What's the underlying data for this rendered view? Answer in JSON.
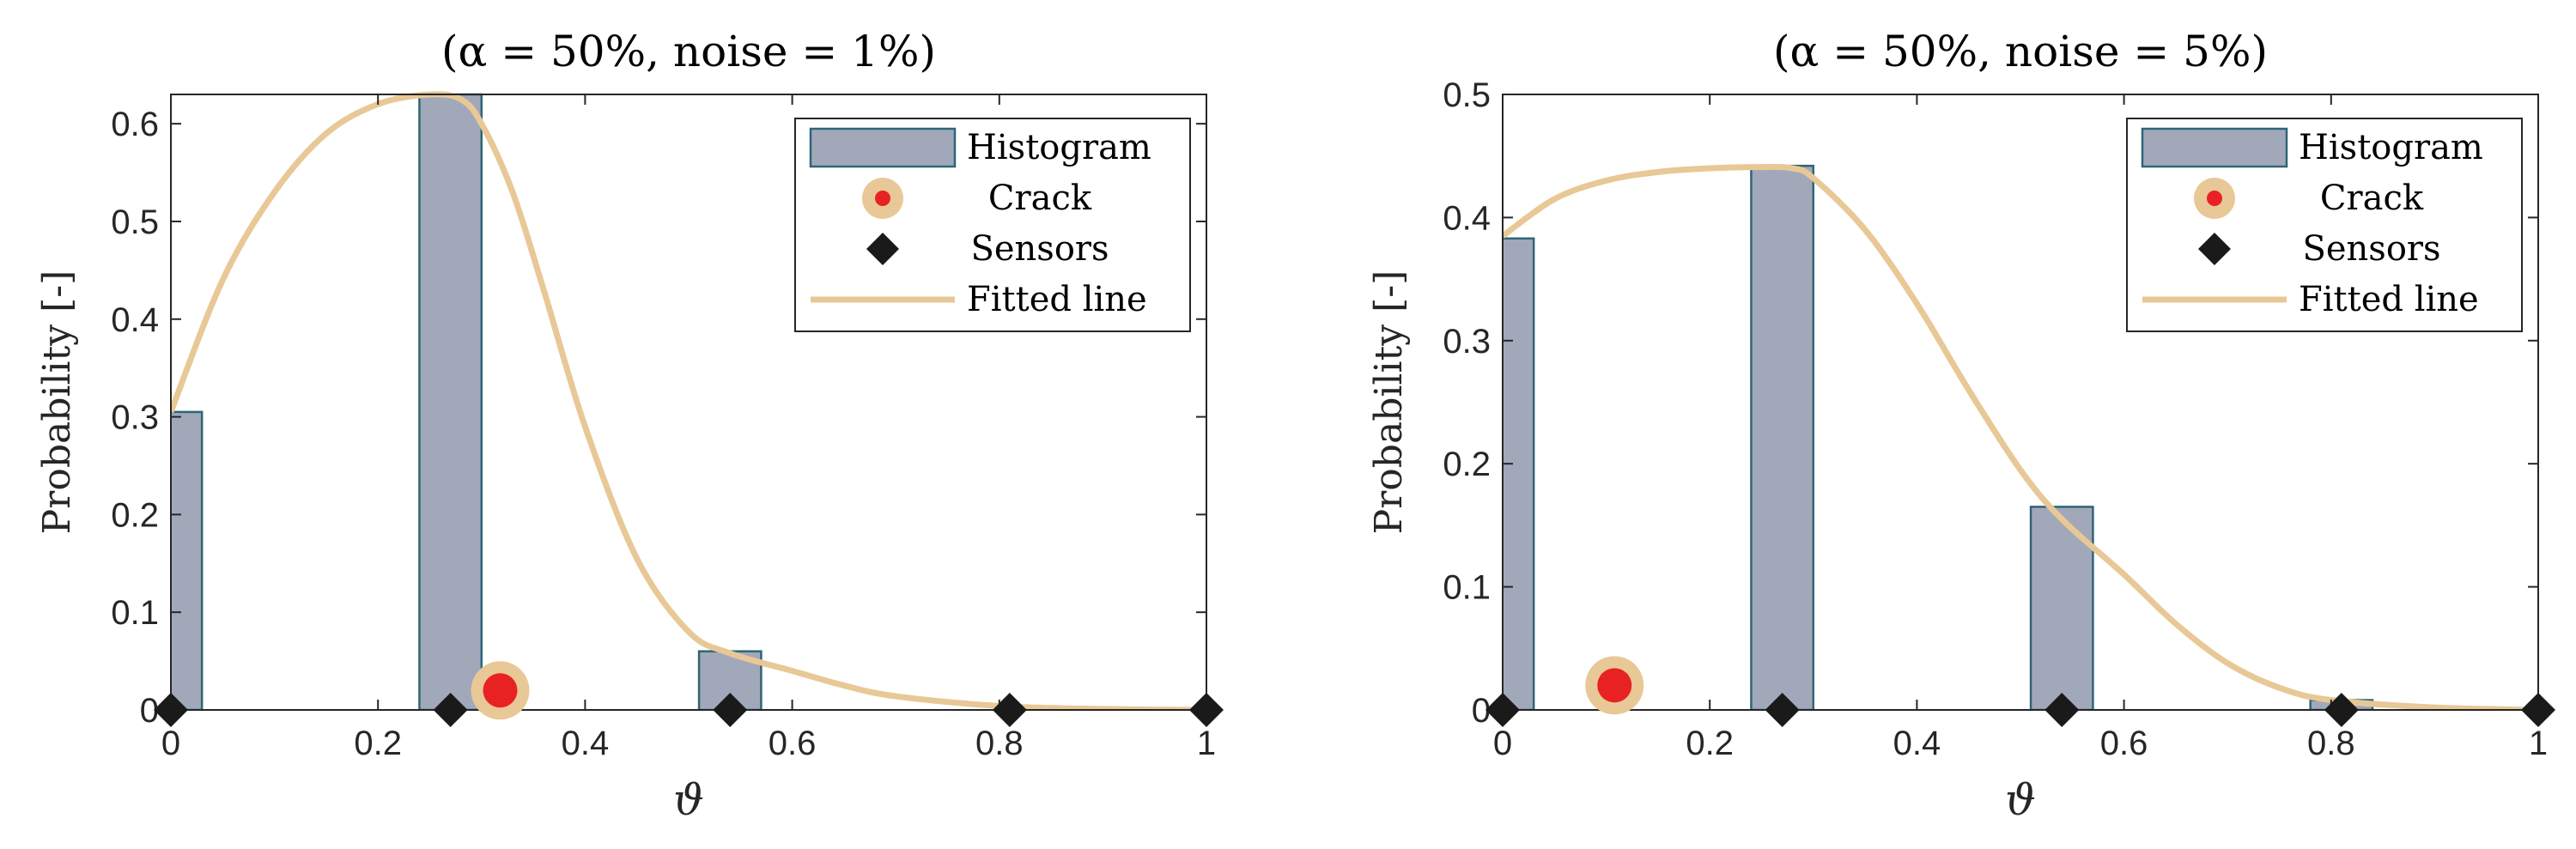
{
  "chart_data": [
    {
      "type": "bar",
      "title": "(α = 50%,  noise = 1%)",
      "xlabel": "ϑ",
      "ylabel": "Probability [-]",
      "xlim": [
        0,
        1
      ],
      "ylim": [
        0,
        0.63
      ],
      "xticks": [
        0,
        0.2,
        0.4,
        0.6,
        0.8,
        1
      ],
      "xtick_labels": [
        "0",
        "0.2",
        "0.4",
        "0.6",
        "0.8",
        "1"
      ],
      "yticks": [
        0,
        0.1,
        0.2,
        0.3,
        0.4,
        0.5,
        0.6
      ],
      "ytick_labels": [
        "0",
        "0.1",
        "0.2",
        "0.3",
        "0.4",
        "0.5",
        "0.6"
      ],
      "legend_position": "top-right",
      "legend": [
        "Histogram",
        "Crack",
        "Sensors",
        "Fitted line"
      ],
      "histogram": {
        "bar_width": 0.06,
        "bins": [
          {
            "center": 0.0,
            "value": 0.305
          },
          {
            "center": 0.27,
            "value": 0.63
          },
          {
            "center": 0.54,
            "value": 0.06
          }
        ]
      },
      "crack": {
        "x": 0.318,
        "y": 0.02
      },
      "sensors": [
        0.0,
        0.27,
        0.54,
        0.81,
        1.0
      ],
      "fitted_line": {
        "x": [
          0,
          0.05,
          0.1,
          0.15,
          0.2,
          0.25,
          0.28,
          0.3,
          0.33,
          0.36,
          0.4,
          0.45,
          0.5,
          0.54,
          0.6,
          0.65,
          0.7,
          0.8,
          0.9,
          1.0
        ],
        "y": [
          0.305,
          0.44,
          0.53,
          0.59,
          0.62,
          0.63,
          0.625,
          0.6,
          0.53,
          0.43,
          0.29,
          0.155,
          0.08,
          0.058,
          0.04,
          0.025,
          0.014,
          0.004,
          0.001,
          0.0
        ]
      },
      "colors": {
        "bar_fill": "#a1a8b9",
        "bar_edge": "#2f6577",
        "fit": "#e8c896",
        "crack_outer": "#e8c896",
        "crack_inner": "#e82222",
        "sensor": "#1a1a1a"
      }
    },
    {
      "type": "bar",
      "title": "(α = 50%,  noise = 5%)",
      "xlabel": "ϑ",
      "ylabel": "Probability [-]",
      "xlim": [
        0,
        1
      ],
      "ylim": [
        0,
        0.5
      ],
      "xticks": [
        0,
        0.2,
        0.4,
        0.6,
        0.8,
        1
      ],
      "xtick_labels": [
        "0",
        "0.2",
        "0.4",
        "0.6",
        "0.8",
        "1"
      ],
      "yticks": [
        0,
        0.1,
        0.2,
        0.3,
        0.4,
        0.5
      ],
      "ytick_labels": [
        "0",
        "0.1",
        "0.2",
        "0.3",
        "0.4",
        "0.5"
      ],
      "legend_position": "top-right",
      "legend": [
        "Histogram",
        "Crack",
        "Sensors",
        "Fitted line"
      ],
      "histogram": {
        "bar_width": 0.06,
        "bins": [
          {
            "center": 0.0,
            "value": 0.383
          },
          {
            "center": 0.27,
            "value": 0.442
          },
          {
            "center": 0.54,
            "value": 0.165
          },
          {
            "center": 0.81,
            "value": 0.008
          }
        ]
      },
      "crack": {
        "x": 0.108,
        "y": 0.02
      },
      "sensors": [
        0.0,
        0.27,
        0.54,
        0.81,
        1.0
      ],
      "fitted_line": {
        "x": [
          0,
          0.05,
          0.1,
          0.15,
          0.2,
          0.25,
          0.28,
          0.3,
          0.35,
          0.4,
          0.45,
          0.5,
          0.54,
          0.6,
          0.65,
          0.7,
          0.75,
          0.8,
          0.9,
          1.0
        ],
        "y": [
          0.385,
          0.415,
          0.43,
          0.437,
          0.44,
          0.441,
          0.44,
          0.432,
          0.39,
          0.33,
          0.26,
          0.195,
          0.155,
          0.11,
          0.07,
          0.038,
          0.018,
          0.008,
          0.002,
          0.0
        ]
      },
      "colors": {
        "bar_fill": "#a1a8b9",
        "bar_edge": "#2f6577",
        "fit": "#e8c896",
        "crack_outer": "#e8c896",
        "crack_inner": "#e82222",
        "sensor": "#1a1a1a"
      }
    }
  ]
}
